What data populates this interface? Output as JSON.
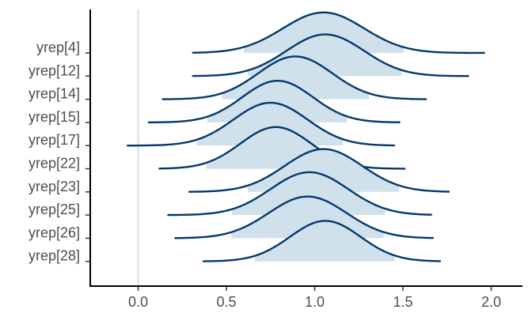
{
  "chart_data": {
    "type": "ridgeline",
    "title": "",
    "xlabel": "",
    "ylabel": "",
    "xlim": [
      -0.27,
      2.15
    ],
    "x_ticks": [
      0.0,
      0.5,
      1.0,
      1.5,
      2.0
    ],
    "x_tick_labels": [
      "0.0",
      "0.5",
      "1.0",
      "1.5",
      "2.0"
    ],
    "reference_line_x": 0.0,
    "fill_color": "#d1e1ec",
    "line_color": "#03396c",
    "ref_line_color": "#dddddd",
    "series": [
      {
        "name": "yrep[4]",
        "support": [
          0.31,
          1.96
        ],
        "peak": 1.05,
        "sd": 0.23,
        "height": 1.75
      },
      {
        "name": "yrep[12]",
        "support": [
          0.31,
          1.87
        ],
        "peak": 1.06,
        "sd": 0.22,
        "height": 1.8
      },
      {
        "name": "yrep[14]",
        "support": [
          0.14,
          1.63
        ],
        "peak": 0.89,
        "sd": 0.21,
        "height": 1.85
      },
      {
        "name": "yrep[15]",
        "support": [
          0.06,
          1.48
        ],
        "peak": 0.79,
        "sd": 0.2,
        "height": 1.8
      },
      {
        "name": "yrep[17]",
        "support": [
          -0.06,
          1.45
        ],
        "peak": 0.75,
        "sd": 0.21,
        "height": 1.85
      },
      {
        "name": "yrep[22]",
        "support": [
          0.12,
          1.51
        ],
        "peak": 0.78,
        "sd": 0.2,
        "height": 1.8
      },
      {
        "name": "yrep[23]",
        "support": [
          0.29,
          1.76
        ],
        "peak": 1.05,
        "sd": 0.22,
        "height": 1.85
      },
      {
        "name": "yrep[25]",
        "support": [
          0.17,
          1.66
        ],
        "peak": 0.97,
        "sd": 0.22,
        "height": 1.85
      },
      {
        "name": "yrep[26]",
        "support": [
          0.21,
          1.67
        ],
        "peak": 0.96,
        "sd": 0.22,
        "height": 1.8
      },
      {
        "name": "yrep[28]",
        "support": [
          0.37,
          1.71
        ],
        "peak": 1.06,
        "sd": 0.2,
        "height": 1.75
      }
    ]
  }
}
